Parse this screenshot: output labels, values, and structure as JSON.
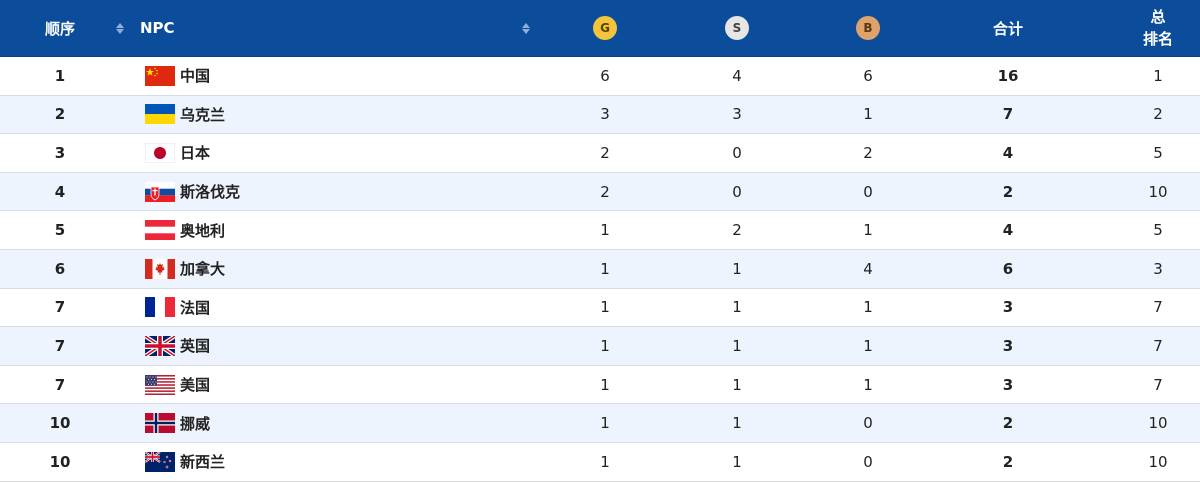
{
  "header": {
    "rank_label": "顺序",
    "npc_label": "NPC",
    "gold_label": "G",
    "silver_label": "S",
    "bronze_label": "B",
    "total_label": "合计",
    "total_rank_line1": "总",
    "total_rank_line2": "排名"
  },
  "colors": {
    "header_bg": "#0b4d9b",
    "row_alt_bg": "#eef4fd",
    "gold": "#f4c43c",
    "silver": "#e6e6e6",
    "bronze": "#e0a26b"
  },
  "rows": [
    {
      "rank": "1",
      "flag": "china-flag",
      "name": "中国",
      "g": "6",
      "s": "4",
      "b": "6",
      "total": "16",
      "total_rank": "1"
    },
    {
      "rank": "2",
      "flag": "ukraine-flag",
      "name": "乌克兰",
      "g": "3",
      "s": "3",
      "b": "1",
      "total": "7",
      "total_rank": "2"
    },
    {
      "rank": "3",
      "flag": "japan-flag",
      "name": "日本",
      "g": "2",
      "s": "0",
      "b": "2",
      "total": "4",
      "total_rank": "5"
    },
    {
      "rank": "4",
      "flag": "slovakia-flag",
      "name": "斯洛伐克",
      "g": "2",
      "s": "0",
      "b": "0",
      "total": "2",
      "total_rank": "10"
    },
    {
      "rank": "5",
      "flag": "austria-flag",
      "name": "奥地利",
      "g": "1",
      "s": "2",
      "b": "1",
      "total": "4",
      "total_rank": "5"
    },
    {
      "rank": "6",
      "flag": "canada-flag",
      "name": "加拿大",
      "g": "1",
      "s": "1",
      "b": "4",
      "total": "6",
      "total_rank": "3"
    },
    {
      "rank": "7",
      "flag": "france-flag",
      "name": "法国",
      "g": "1",
      "s": "1",
      "b": "1",
      "total": "3",
      "total_rank": "7"
    },
    {
      "rank": "7",
      "flag": "uk-flag",
      "name": "英国",
      "g": "1",
      "s": "1",
      "b": "1",
      "total": "3",
      "total_rank": "7"
    },
    {
      "rank": "7",
      "flag": "usa-flag",
      "name": "美国",
      "g": "1",
      "s": "1",
      "b": "1",
      "total": "3",
      "total_rank": "7"
    },
    {
      "rank": "10",
      "flag": "norway-flag",
      "name": "挪威",
      "g": "1",
      "s": "1",
      "b": "0",
      "total": "2",
      "total_rank": "10"
    },
    {
      "rank": "10",
      "flag": "new-zealand-flag",
      "name": "新西兰",
      "g": "1",
      "s": "1",
      "b": "0",
      "total": "2",
      "total_rank": "10"
    }
  ]
}
